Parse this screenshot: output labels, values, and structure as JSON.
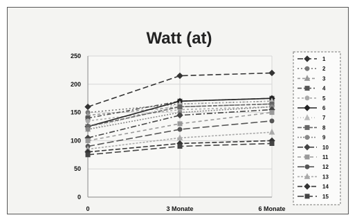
{
  "chart_data": {
    "type": "line",
    "title": "Watt (at)",
    "xlabel": "",
    "ylabel": "",
    "categories": [
      "0",
      "3 Monate",
      "6 Monate"
    ],
    "ylim": [
      0,
      250
    ],
    "yticks": [
      "0",
      "50",
      "100",
      "150",
      "200",
      "250"
    ],
    "grid": true,
    "legend_position": "right",
    "series": [
      {
        "name": "1",
        "values": [
          160,
          215,
          220
        ],
        "color": "#333333"
      },
      {
        "name": "2",
        "values": [
          150,
          165,
          170
        ],
        "color": "#777777"
      },
      {
        "name": "3",
        "values": [
          145,
          160,
          165
        ],
        "color": "#999999"
      },
      {
        "name": "4",
        "values": [
          140,
          170,
          175
        ],
        "color": "#555555"
      },
      {
        "name": "5",
        "values": [
          135,
          155,
          160
        ],
        "color": "#aaaaaa"
      },
      {
        "name": "6",
        "values": [
          125,
          170,
          175
        ],
        "color": "#222222"
      },
      {
        "name": "7",
        "values": [
          120,
          165,
          170
        ],
        "color": "#bbbbbb"
      },
      {
        "name": "8",
        "values": [
          125,
          160,
          165
        ],
        "color": "#666666"
      },
      {
        "name": "9",
        "values": [
          120,
          150,
          160
        ],
        "color": "#888888"
      },
      {
        "name": "10",
        "values": [
          105,
          145,
          155
        ],
        "color": "#444444"
      },
      {
        "name": "11",
        "values": [
          100,
          130,
          150
        ],
        "color": "#999999"
      },
      {
        "name": "12",
        "values": [
          90,
          120,
          135
        ],
        "color": "#555555"
      },
      {
        "name": "13",
        "values": [
          85,
          105,
          115
        ],
        "color": "#aaaaaa"
      },
      {
        "name": "14",
        "values": [
          80,
          95,
          100
        ],
        "color": "#333333"
      },
      {
        "name": "15",
        "values": [
          75,
          90,
          95
        ],
        "color": "#444444"
      }
    ]
  }
}
